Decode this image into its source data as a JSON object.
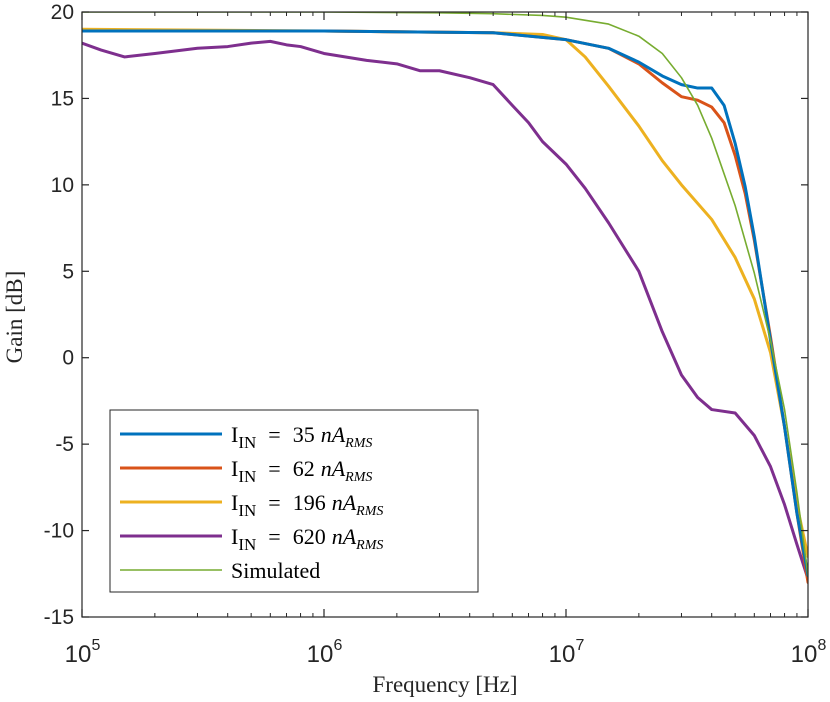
{
  "chart_data": {
    "type": "line",
    "xlabel": "Frequency [Hz]",
    "ylabel": "Gain [dB]",
    "xscale": "log",
    "xlim": [
      100000,
      100000000
    ],
    "ylim": [
      -15,
      20
    ],
    "xticks": [
      {
        "value": 100000,
        "base": "10",
        "exp": "5"
      },
      {
        "value": 1000000,
        "base": "10",
        "exp": "6"
      },
      {
        "value": 10000000,
        "base": "10",
        "exp": "7"
      },
      {
        "value": 100000000,
        "base": "10",
        "exp": "8"
      }
    ],
    "yticks": [
      {
        "value": 20,
        "label": "20"
      },
      {
        "value": 15,
        "label": "15"
      },
      {
        "value": 10,
        "label": "10"
      },
      {
        "value": 5,
        "label": "5"
      },
      {
        "value": 0,
        "label": "0"
      },
      {
        "value": -5,
        "label": "-5"
      },
      {
        "value": -10,
        "label": "-10"
      },
      {
        "value": -15,
        "label": "-15"
      }
    ],
    "grid": false,
    "legend_position": "bottom-left",
    "series": [
      {
        "name": "I_IN = 35 nA_RMS",
        "legend": {
          "main": "I",
          "sub1": "IN",
          "eq": "=",
          "num": "35",
          "unit": "nA",
          "sub2": "RMS"
        },
        "color": "#0072BD",
        "width": 3,
        "x": [
          100000,
          1000000,
          5000000,
          10000000,
          15000000,
          20000000,
          25000000,
          30000000,
          35000000,
          40000000,
          45000000,
          50000000,
          55000000,
          60000000,
          70000000,
          80000000,
          90000000,
          100000000
        ],
        "y": [
          18.9,
          18.9,
          18.8,
          18.4,
          17.9,
          17.1,
          16.3,
          15.8,
          15.6,
          15.6,
          14.6,
          12.4,
          9.9,
          7.0,
          1.0,
          -4.0,
          -9.0,
          -12.6
        ]
      },
      {
        "name": "I_IN = 62 nA_RMS",
        "legend": {
          "main": "I",
          "sub1": "IN",
          "eq": "=",
          "num": "62",
          "unit": "nA",
          "sub2": "RMS"
        },
        "color": "#D95319",
        "width": 3,
        "x": [
          100000,
          1000000,
          5000000,
          10000000,
          15000000,
          20000000,
          25000000,
          30000000,
          35000000,
          40000000,
          45000000,
          50000000,
          55000000,
          60000000,
          70000000,
          80000000,
          90000000,
          100000000
        ],
        "y": [
          18.9,
          18.9,
          18.8,
          18.4,
          17.9,
          17.0,
          15.9,
          15.1,
          14.9,
          14.5,
          13.6,
          11.7,
          9.5,
          6.8,
          1.2,
          -4.0,
          -9.0,
          -13.0
        ]
      },
      {
        "name": "I_IN = 196 nA_RMS",
        "legend": {
          "main": "I",
          "sub1": "IN",
          "eq": "=",
          "num": "196",
          "unit": "nA",
          "sub2": "RMS"
        },
        "color": "#EDB120",
        "width": 3,
        "x": [
          100000,
          1000000,
          5000000,
          8000000,
          10000000,
          12000000,
          15000000,
          20000000,
          25000000,
          30000000,
          40000000,
          50000000,
          60000000,
          70000000,
          80000000,
          90000000,
          100000000
        ],
        "y": [
          19.0,
          18.9,
          18.8,
          18.7,
          18.4,
          17.4,
          15.7,
          13.4,
          11.4,
          10.0,
          8.0,
          5.8,
          3.4,
          0.3,
          -4.0,
          -8.5,
          -11.5
        ]
      },
      {
        "name": "I_IN = 620 nA_RMS",
        "legend": {
          "main": "I",
          "sub1": "IN",
          "eq": "=",
          "num": "620",
          "unit": "nA",
          "sub2": "RMS"
        },
        "color": "#7E2F8E",
        "width": 3,
        "x": [
          100000,
          120000,
          150000,
          200000,
          300000,
          400000,
          500000,
          600000,
          700000,
          800000,
          1000000,
          1500000,
          2000000,
          2500000,
          3000000,
          4000000,
          5000000,
          6000000,
          7000000,
          8000000,
          10000000,
          12000000,
          15000000,
          20000000,
          25000000,
          30000000,
          35000000,
          40000000,
          50000000,
          60000000,
          70000000,
          80000000,
          90000000,
          100000000
        ],
        "y": [
          18.2,
          17.8,
          17.4,
          17.6,
          17.9,
          18.0,
          18.2,
          18.3,
          18.1,
          18.0,
          17.6,
          17.2,
          17.0,
          16.6,
          16.6,
          16.2,
          15.8,
          14.6,
          13.6,
          12.5,
          11.2,
          9.8,
          7.8,
          5.0,
          1.5,
          -1.0,
          -2.3,
          -3.0,
          -3.2,
          -4.5,
          -6.3,
          -8.5,
          -10.8,
          -12.8
        ]
      },
      {
        "name": "Simulated",
        "legend": {
          "main": "Simulated"
        },
        "color": "#77AC30",
        "width": 1.6,
        "x": [
          100000,
          1000000,
          3000000,
          5000000,
          8000000,
          10000000,
          15000000,
          20000000,
          25000000,
          30000000,
          35000000,
          40000000,
          50000000,
          60000000,
          70000000,
          80000000,
          90000000,
          100000000
        ],
        "y": [
          20.0,
          20.0,
          19.95,
          19.9,
          19.8,
          19.7,
          19.3,
          18.6,
          17.6,
          16.2,
          14.6,
          12.7,
          8.8,
          4.9,
          1.0,
          -3.0,
          -7.8,
          -12.6
        ]
      }
    ]
  }
}
